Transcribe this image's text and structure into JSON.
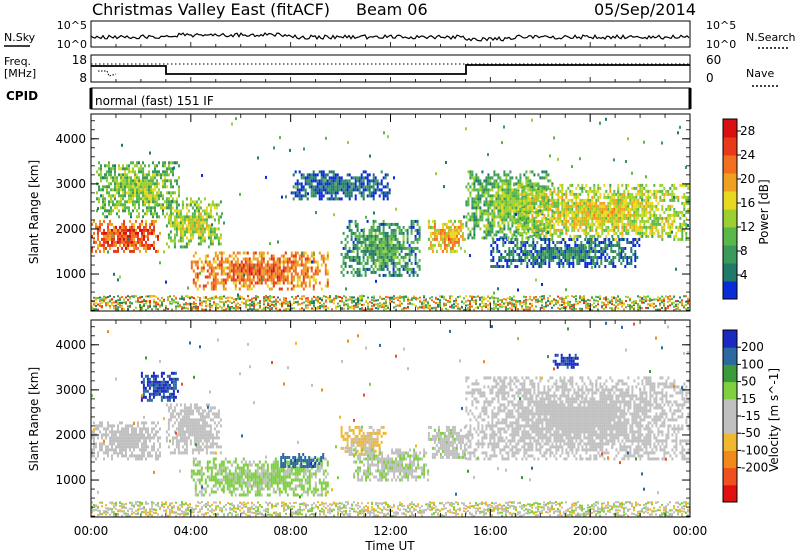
{
  "header": {
    "title": "Christmas Valley East (fitACF)",
    "beam": "Beam 06",
    "date": "05/Sep/2014"
  },
  "status_panels": {
    "nsky_label": "N.Sky",
    "nsearch_label": "N.Search",
    "nsky_ticks": [
      "10^5",
      "10^0"
    ],
    "nsearch_ticks": [
      "10^5",
      "10^0"
    ],
    "freq_label_line1": "Freq.",
    "freq_label_line2": "[MHz]",
    "freq_ticks": [
      "18",
      "8"
    ],
    "nave_label": "Nave",
    "nave_ticks": [
      "60",
      "0"
    ],
    "cpid_label": "CPID",
    "cpid_text": "normal (fast) 151 IF"
  },
  "colors": {
    "power_scale": [
      "#0a2bd8",
      "#1f7a6a",
      "#3a9a5a",
      "#5ab84a",
      "#9ad030",
      "#e8d820",
      "#f0a020",
      "#f07020",
      "#e83a18",
      "#d81010"
    ],
    "velocity_scale": [
      "#e01010",
      "#f05020",
      "#f08a1c",
      "#f0b830",
      "#c0c0c0",
      "#c0c0c0",
      "#7ed040",
      "#3a9a3a",
      "#2a6aa0",
      "#1a2ac0"
    ]
  },
  "chart_data": [
    {
      "type": "heatmap",
      "panel": "power",
      "ylabel": "Slant Range [km]",
      "ylim": [
        180,
        4550
      ],
      "yticks": [
        1000,
        2000,
        3000,
        4000
      ],
      "x_ticks": [
        "00:00",
        "04:00",
        "08:00",
        "12:00",
        "16:00",
        "20:00",
        "00:00"
      ],
      "xlim_hours": [
        0,
        24
      ],
      "colorbar_label": "Power [dB]",
      "colorbar_ticks": [
        "4",
        "8",
        "12",
        "16",
        "20",
        "24",
        "28"
      ],
      "colorbar_range": [
        0,
        30
      ],
      "echo_regions": [
        {
          "t_start": 0.0,
          "t_end": 2.8,
          "range_min": 1500,
          "range_max": 2200,
          "power_db": 26
        },
        {
          "t_start": 0.2,
          "t_end": 3.5,
          "range_min": 2300,
          "range_max": 3500,
          "power_db": 14
        },
        {
          "t_start": 3.0,
          "t_end": 5.2,
          "range_min": 1600,
          "range_max": 2700,
          "power_db": 15
        },
        {
          "t_start": 4.0,
          "t_end": 9.5,
          "range_min": 700,
          "range_max": 1500,
          "power_db": 24
        },
        {
          "t_start": 8.0,
          "t_end": 12.0,
          "range_min": 2700,
          "range_max": 3300,
          "power_db": 6
        },
        {
          "t_start": 10.0,
          "t_end": 13.2,
          "range_min": 1000,
          "range_max": 2200,
          "power_db": 10
        },
        {
          "t_start": 13.5,
          "t_end": 15.0,
          "range_min": 1500,
          "range_max": 2200,
          "power_db": 20
        },
        {
          "t_start": 15.0,
          "t_end": 18.5,
          "range_min": 1800,
          "range_max": 3300,
          "power_db": 13
        },
        {
          "t_start": 17.0,
          "t_end": 24.0,
          "range_min": 1800,
          "range_max": 3000,
          "power_db": 17
        },
        {
          "t_start": 16.0,
          "t_end": 22.0,
          "range_min": 1200,
          "range_max": 1800,
          "power_db": 7
        }
      ]
    },
    {
      "type": "heatmap",
      "panel": "velocity",
      "ylabel": "Slant Range [km]",
      "xlabel": "Time UT",
      "ylim": [
        180,
        4550
      ],
      "yticks": [
        1000,
        2000,
        3000,
        4000
      ],
      "x_ticks": [
        "00:00",
        "04:00",
        "08:00",
        "12:00",
        "16:00",
        "20:00",
        "00:00"
      ],
      "xlim_hours": [
        0,
        24
      ],
      "colorbar_label": "Velocity [m s^-1]",
      "colorbar_ticks": [
        "200",
        "100",
        "50",
        "15",
        "-15",
        "-50",
        "-100",
        "-200"
      ],
      "colorbar_range": [
        -250,
        250
      ],
      "echo_regions": [
        {
          "t_start": 0.0,
          "t_end": 2.8,
          "range_min": 1500,
          "range_max": 2300,
          "velocity": 0
        },
        {
          "t_start": 2.0,
          "t_end": 3.5,
          "range_min": 2800,
          "range_max": 3400,
          "velocity": 200
        },
        {
          "t_start": 3.0,
          "t_end": 5.2,
          "range_min": 1600,
          "range_max": 2700,
          "velocity": 0
        },
        {
          "t_start": 4.0,
          "t_end": 9.5,
          "range_min": 700,
          "range_max": 1500,
          "velocity": 60
        },
        {
          "t_start": 7.5,
          "t_end": 9.3,
          "range_min": 1300,
          "range_max": 1600,
          "velocity": 180
        },
        {
          "t_start": 10.0,
          "t_end": 11.8,
          "range_min": 1600,
          "range_max": 2200,
          "velocity": -60
        },
        {
          "t_start": 10.5,
          "t_end": 13.5,
          "range_min": 1000,
          "range_max": 1700,
          "velocity": 40
        },
        {
          "t_start": 13.5,
          "t_end": 15.0,
          "range_min": 1500,
          "range_max": 2200,
          "velocity": 30
        },
        {
          "t_start": 15.0,
          "t_end": 24.0,
          "range_min": 1500,
          "range_max": 3300,
          "velocity": 0
        },
        {
          "t_start": 18.5,
          "t_end": 19.5,
          "range_min": 3500,
          "range_max": 3800,
          "velocity": 220
        }
      ]
    }
  ]
}
